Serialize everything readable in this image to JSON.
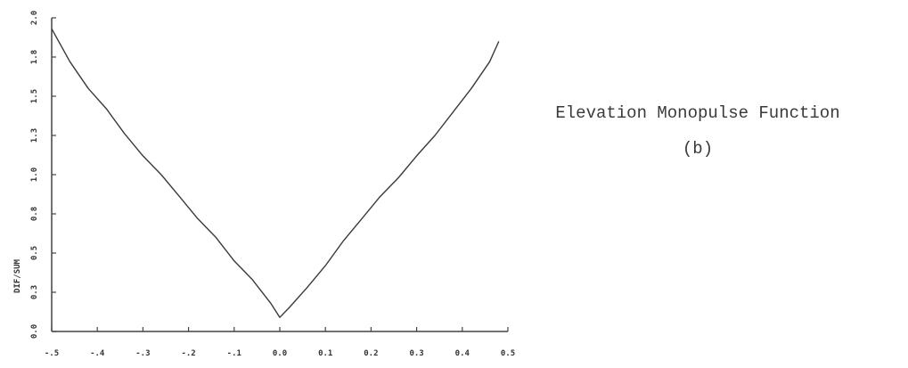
{
  "chart_data": {
    "type": "line",
    "title": "Elevation Monopulse Function",
    "subtitle": "(b)",
    "xlabel": "",
    "ylabel": "DIF/SUM",
    "xlim": [
      -0.5,
      0.5
    ],
    "ylim": [
      0.0,
      2.0
    ],
    "x_ticks": [
      -0.5,
      -0.4,
      -0.3,
      -0.2,
      -0.1,
      0.0,
      0.1,
      0.2,
      0.3,
      0.4,
      0.5
    ],
    "x_tick_labels": [
      "-.5",
      "-.4",
      "-.3",
      "-.2",
      "-.1",
      "0.0",
      "0.1",
      "0.2",
      "0.3",
      "0.4",
      "0.5"
    ],
    "y_ticks": [
      0.0,
      0.25,
      0.5,
      0.75,
      1.0,
      1.25,
      1.5,
      1.75,
      2.0
    ],
    "y_tick_labels": [
      "0.0",
      "0.3",
      "0.5",
      "0.8",
      "1.0",
      "1.3",
      "1.5",
      "1.8",
      "2.0"
    ],
    "grid": false,
    "line_color": "#3a3a3a",
    "series": [
      {
        "name": "",
        "x": [
          -0.5,
          -0.46,
          -0.42,
          -0.38,
          -0.34,
          -0.3,
          -0.26,
          -0.22,
          -0.18,
          -0.14,
          -0.1,
          -0.06,
          -0.02,
          0.0,
          0.02,
          0.06,
          0.1,
          0.14,
          0.18,
          0.22,
          0.26,
          0.3,
          0.34,
          0.38,
          0.42,
          0.46,
          0.48
        ],
        "y": [
          1.93,
          1.72,
          1.55,
          1.42,
          1.26,
          1.12,
          1.0,
          0.86,
          0.72,
          0.6,
          0.45,
          0.33,
          0.18,
          0.09,
          0.15,
          0.28,
          0.42,
          0.58,
          0.72,
          0.86,
          0.98,
          1.12,
          1.25,
          1.4,
          1.55,
          1.72,
          1.85
        ]
      }
    ]
  }
}
